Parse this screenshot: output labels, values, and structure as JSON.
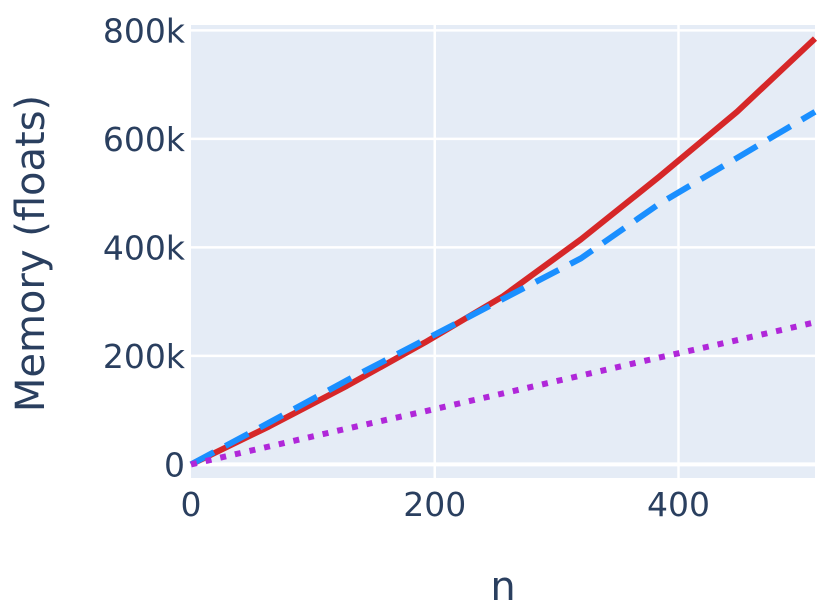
{
  "chart_data": {
    "type": "line",
    "title": "",
    "xlabel": "n",
    "ylabel": "Memory (floats)",
    "xlim": [
      0,
      512
    ],
    "ylim": [
      -25000,
      810000
    ],
    "grid": true,
    "legend": "none",
    "background_color": "#e5ecf6",
    "grid_color": "#ffffff",
    "text_color": "#2a3f5f",
    "x_ticks": [
      {
        "value": 0,
        "label": "0"
      },
      {
        "value": 200,
        "label": "200"
      },
      {
        "value": 400,
        "label": "400"
      }
    ],
    "y_ticks": [
      {
        "value": 0,
        "label": "0"
      },
      {
        "value": 200000,
        "label": "200k"
      },
      {
        "value": 400000,
        "label": "400k"
      },
      {
        "value": 600000,
        "label": "600k"
      },
      {
        "value": 800000,
        "label": "800k"
      }
    ],
    "series": [
      {
        "color": "#d62728",
        "dash": "solid",
        "x": [
          0,
          64,
          128,
          192,
          256,
          320,
          384,
          448,
          512
        ],
        "y": [
          0,
          70000,
          145000,
          225000,
          310000,
          415000,
          530000,
          650000,
          785000
        ]
      },
      {
        "color": "#1a8fff",
        "dash": "dash",
        "x": [
          0,
          64,
          128,
          192,
          256,
          320,
          384,
          448,
          512
        ],
        "y": [
          0,
          77000,
          155000,
          230000,
          305000,
          380000,
          480000,
          565000,
          650000
        ]
      },
      {
        "color": "#b027d9",
        "dash": "dot",
        "x": [
          0,
          64,
          128,
          192,
          256,
          320,
          384,
          448,
          512
        ],
        "y": [
          0,
          33000,
          66000,
          98000,
          131000,
          164000,
          197000,
          229000,
          262000
        ]
      }
    ]
  }
}
